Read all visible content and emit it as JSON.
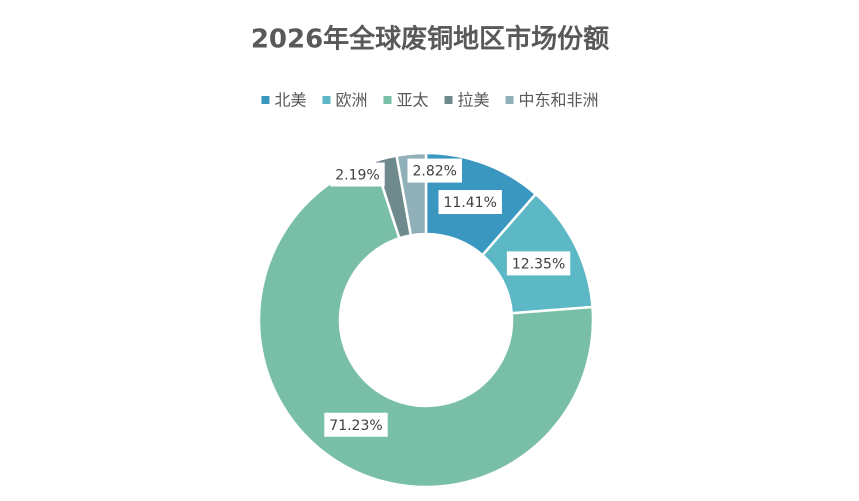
{
  "chart_data": {
    "type": "donut",
    "title": "2026年全球废铜地区市场份额",
    "categories": [
      "北美",
      "欧洲",
      "亚太",
      "拉美",
      "中东和非洲"
    ],
    "values": [
      11.41,
      12.35,
      71.23,
      2.19,
      2.82
    ],
    "value_labels": [
      "11.41%",
      "12.35%",
      "71.23%",
      "2.19%",
      "2.82%"
    ],
    "colors": [
      "#3a97c0",
      "#5bb8c4",
      "#79bfa8",
      "#6f8a8d",
      "#8fb0b8"
    ],
    "legend": "top"
  }
}
